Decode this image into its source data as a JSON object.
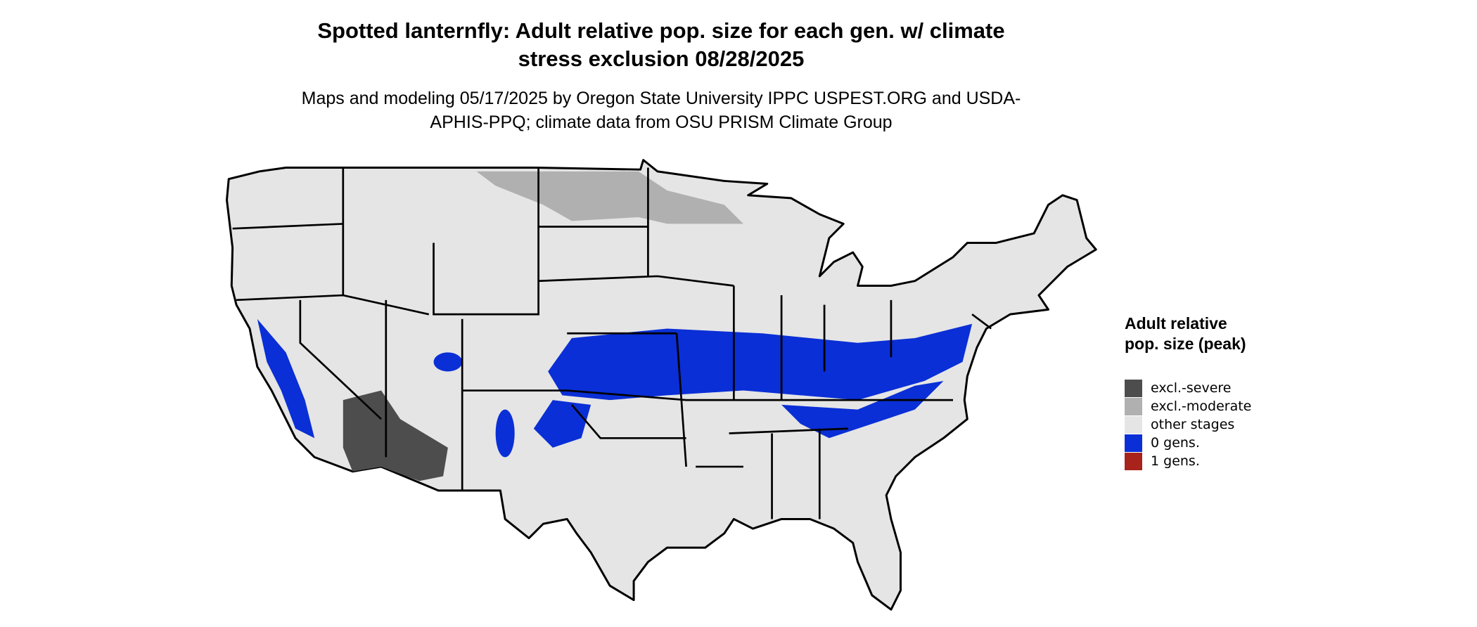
{
  "title": "Spotted lanternfly: Adult relative pop. size for each gen. w/ climate stress exclusion 08/28/2025",
  "subtitle": "Maps and modeling 05/17/2025 by Oregon State University IPPC USPEST.ORG and USDA-APHIS-PPQ; climate data from OSU PRISM Climate Group",
  "legend": {
    "title": "Adult relative pop. size (peak)",
    "items": [
      {
        "label": "excl.-severe",
        "color": "#4d4d4d"
      },
      {
        "label": "excl.-moderate",
        "color": "#b0b0b0"
      },
      {
        "label": "other stages",
        "color": "#e5e5e5"
      },
      {
        "label": "0 gens.",
        "color": "#0a2fd6"
      },
      {
        "label": "1 gens.",
        "color": "#a8231b"
      }
    ]
  }
}
